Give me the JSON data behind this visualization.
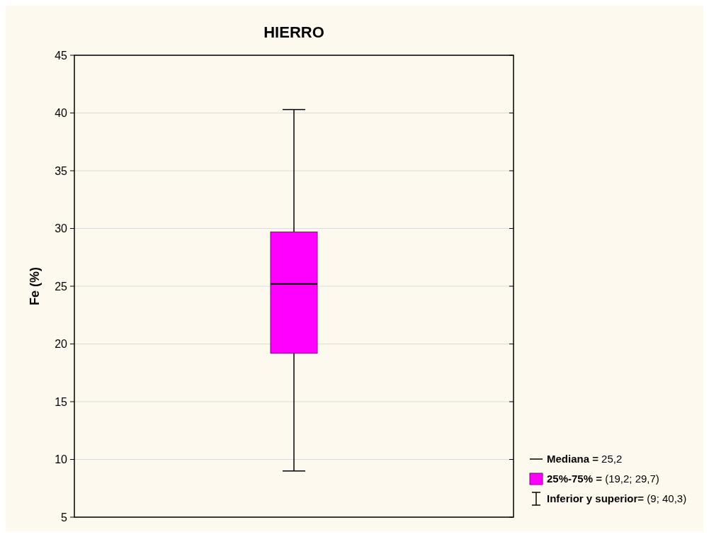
{
  "chart_data": {
    "type": "box",
    "title": "HIERRO",
    "ylabel": "Fe (%)",
    "categories": [
      null
    ],
    "series": [
      {
        "color": "#ff00ff",
        "boxes": [
          {
            "low": 9,
            "q1": 19.2,
            "median": 25.2,
            "q3": 29.7,
            "high": 40.3
          }
        ]
      }
    ],
    "ylim": [
      5,
      45
    ],
    "yticks": [
      5,
      10,
      15,
      20,
      25,
      30,
      35,
      40,
      45
    ],
    "grid": "y",
    "annotations": [
      "Mediana = 25,2",
      "25%-75% = (19,2; 29,7)",
      "Inferior y superior= (9; 40,3)"
    ]
  }
}
